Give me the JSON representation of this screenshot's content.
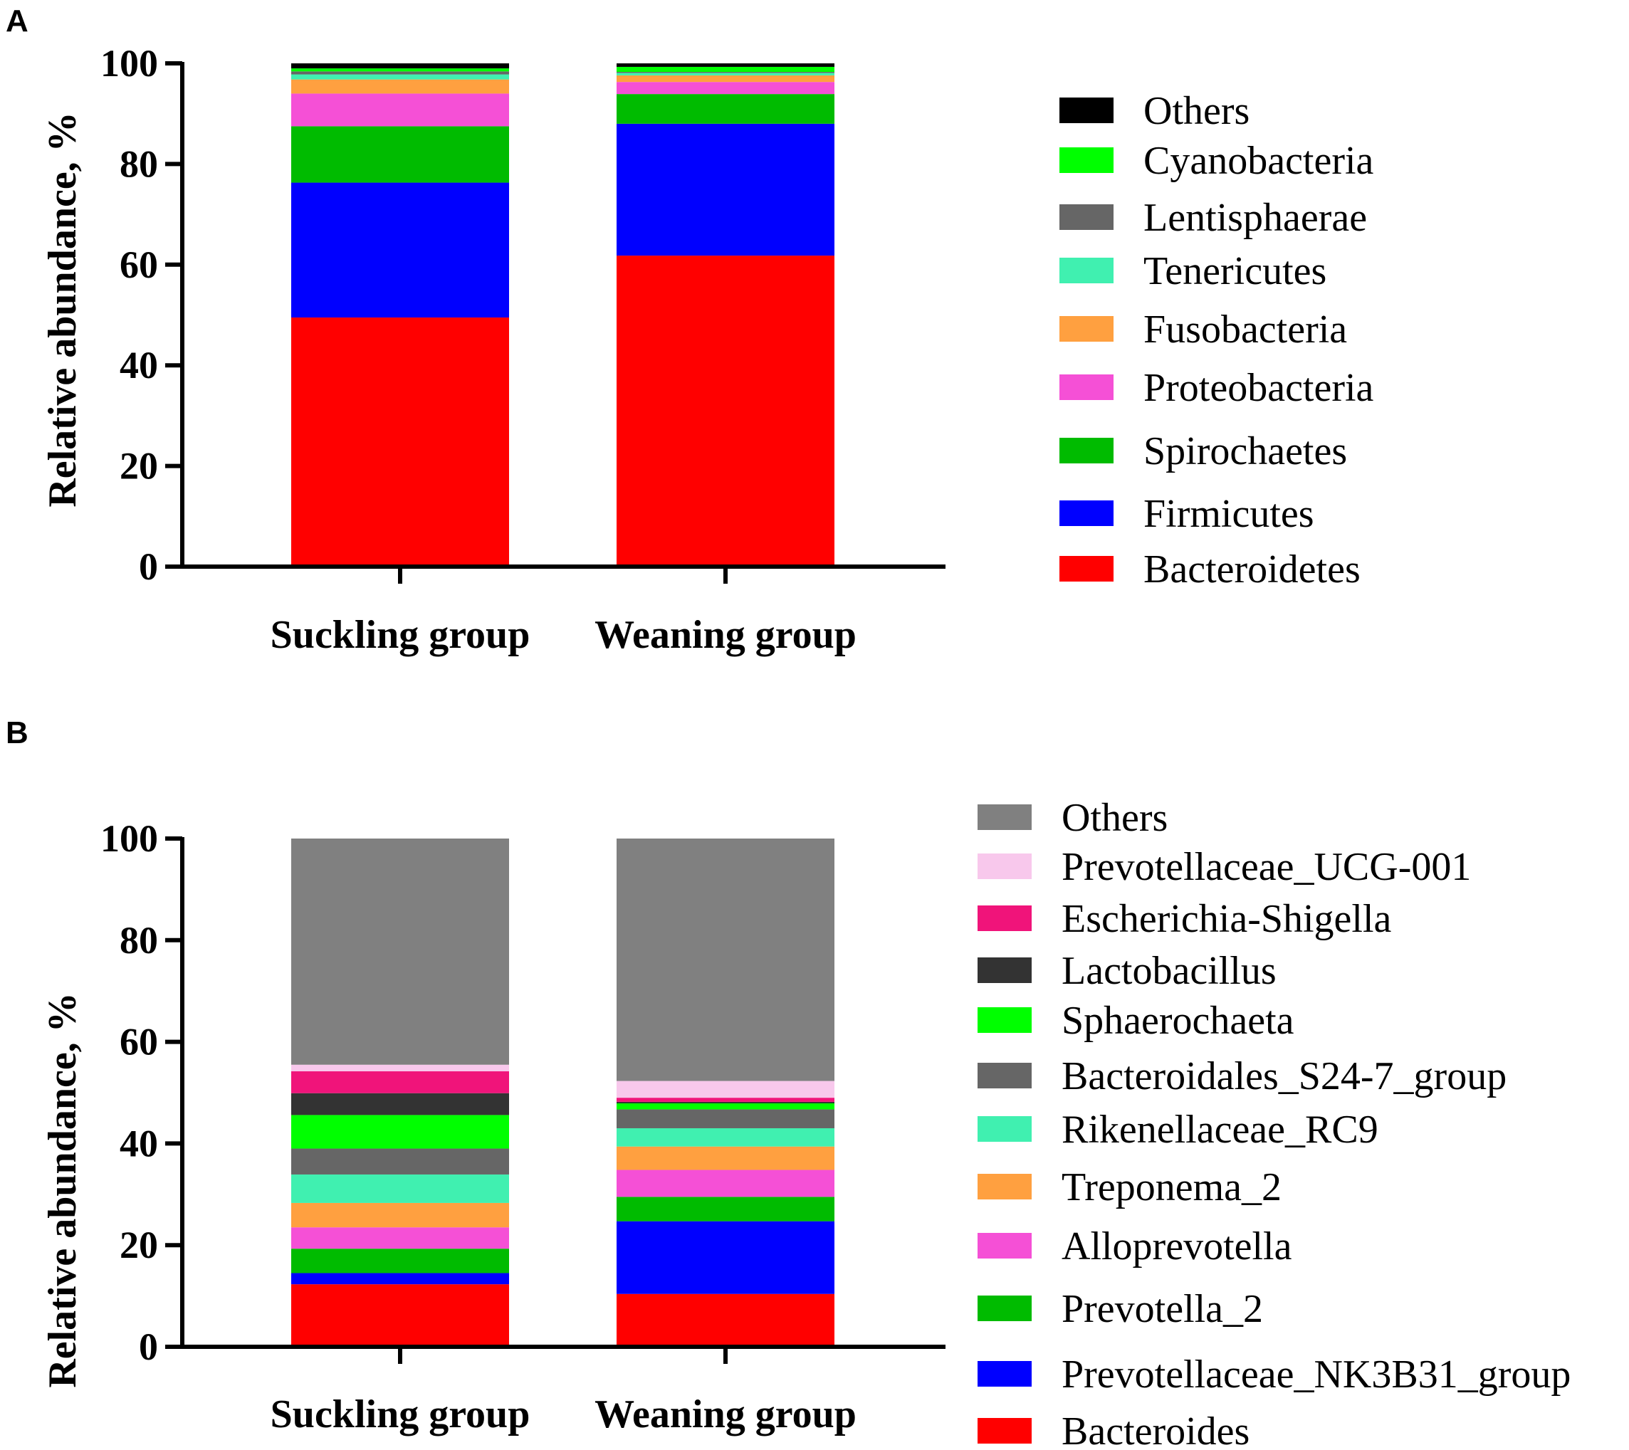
{
  "chart_data": [
    {
      "panel": "A",
      "type": "bar",
      "stacked": true,
      "ylabel": "Relative abundance, %",
      "ylim": [
        0,
        100
      ],
      "yticks": [
        "0",
        "20",
        "40",
        "60",
        "80",
        "100"
      ],
      "categories": [
        "Suckling group",
        "Weaning group"
      ],
      "series": [
        {
          "name": "Bacteroidetes",
          "color": "#ff0000",
          "values": [
            49.5,
            61.8
          ]
        },
        {
          "name": "Firmicutes",
          "color": "#0000ff",
          "values": [
            26.8,
            26.2
          ]
        },
        {
          "name": "Spirochaetes",
          "color": "#00bb00",
          "values": [
            11.2,
            5.9
          ]
        },
        {
          "name": "Proteobacteria",
          "color": "#f550d6",
          "values": [
            6.5,
            2.4
          ]
        },
        {
          "name": "Fusobacteria",
          "color": "#ffa040",
          "values": [
            2.8,
            1.3
          ]
        },
        {
          "name": "Tenericutes",
          "color": "#40f0b0",
          "values": [
            1.0,
            0.5
          ]
        },
        {
          "name": "Lentisphaerae",
          "color": "#666666",
          "values": [
            0.6,
            0.2
          ]
        },
        {
          "name": "Cyanobacteria",
          "color": "#00ff00",
          "values": [
            0.6,
            1.0
          ]
        },
        {
          "name": "Others",
          "color": "#000000",
          "values": [
            1.0,
            0.7
          ]
        }
      ],
      "legend_order": [
        "Others",
        "Cyanobacteria",
        "Lentisphaerae",
        "Tenericutes",
        "Fusobacteria",
        "Proteobacteria",
        "Spirochaetes",
        "Firmicutes",
        "Bacteroidetes"
      ]
    },
    {
      "panel": "B",
      "type": "bar",
      "stacked": true,
      "ylabel": "Relative abundance, %",
      "ylim": [
        0,
        100
      ],
      "yticks": [
        "0",
        "20",
        "40",
        "60",
        "80",
        "100"
      ],
      "categories": [
        "Suckling group",
        "Weaning group"
      ],
      "series": [
        {
          "name": "Bacteroides",
          "color": "#ff0000",
          "values": [
            12.3,
            10.4
          ]
        },
        {
          "name": "Prevotellaceae_NK3B31_group",
          "color": "#0000ff",
          "values": [
            2.2,
            14.3
          ]
        },
        {
          "name": "Prevotella_2",
          "color": "#00bb00",
          "values": [
            4.8,
            4.8
          ]
        },
        {
          "name": "Alloprevotella",
          "color": "#f550d6",
          "values": [
            4.2,
            5.3
          ]
        },
        {
          "name": "Treponema_2",
          "color": "#ffa040",
          "values": [
            4.8,
            4.6
          ]
        },
        {
          "name": "Rikenellaceae_RC9",
          "color": "#40f0b0",
          "values": [
            5.6,
            3.6
          ]
        },
        {
          "name": "Bacteroidales_S24-7_group",
          "color": "#666666",
          "values": [
            5.1,
            3.7
          ]
        },
        {
          "name": "Sphaerochaeta",
          "color": "#00ff00",
          "values": [
            6.6,
            1.2
          ]
        },
        {
          "name": "Lactobacillus",
          "color": "#333333",
          "values": [
            4.3,
            0.3
          ]
        },
        {
          "name": "Escherichia-Shigella",
          "color": "#f0147a",
          "values": [
            4.3,
            0.8
          ]
        },
        {
          "name": "Prevotellaceae_UCG-001",
          "color": "#f8c8ec",
          "values": [
            1.3,
            3.3
          ]
        },
        {
          "name": "Others",
          "color": "#808080",
          "values": [
            44.5,
            47.7
          ]
        }
      ],
      "legend_order": [
        "Others",
        "Prevotellaceae_UCG-001",
        "Escherichia-Shigella",
        "Lactobacillus",
        "Sphaerochaeta",
        "Bacteroidales_S24-7_group",
        "Rikenellaceae_RC9",
        "Treponema_2",
        "Alloprevotella",
        "Prevotella_2",
        "Prevotellaceae_NK3B31_group",
        "Bacteroides"
      ]
    }
  ]
}
